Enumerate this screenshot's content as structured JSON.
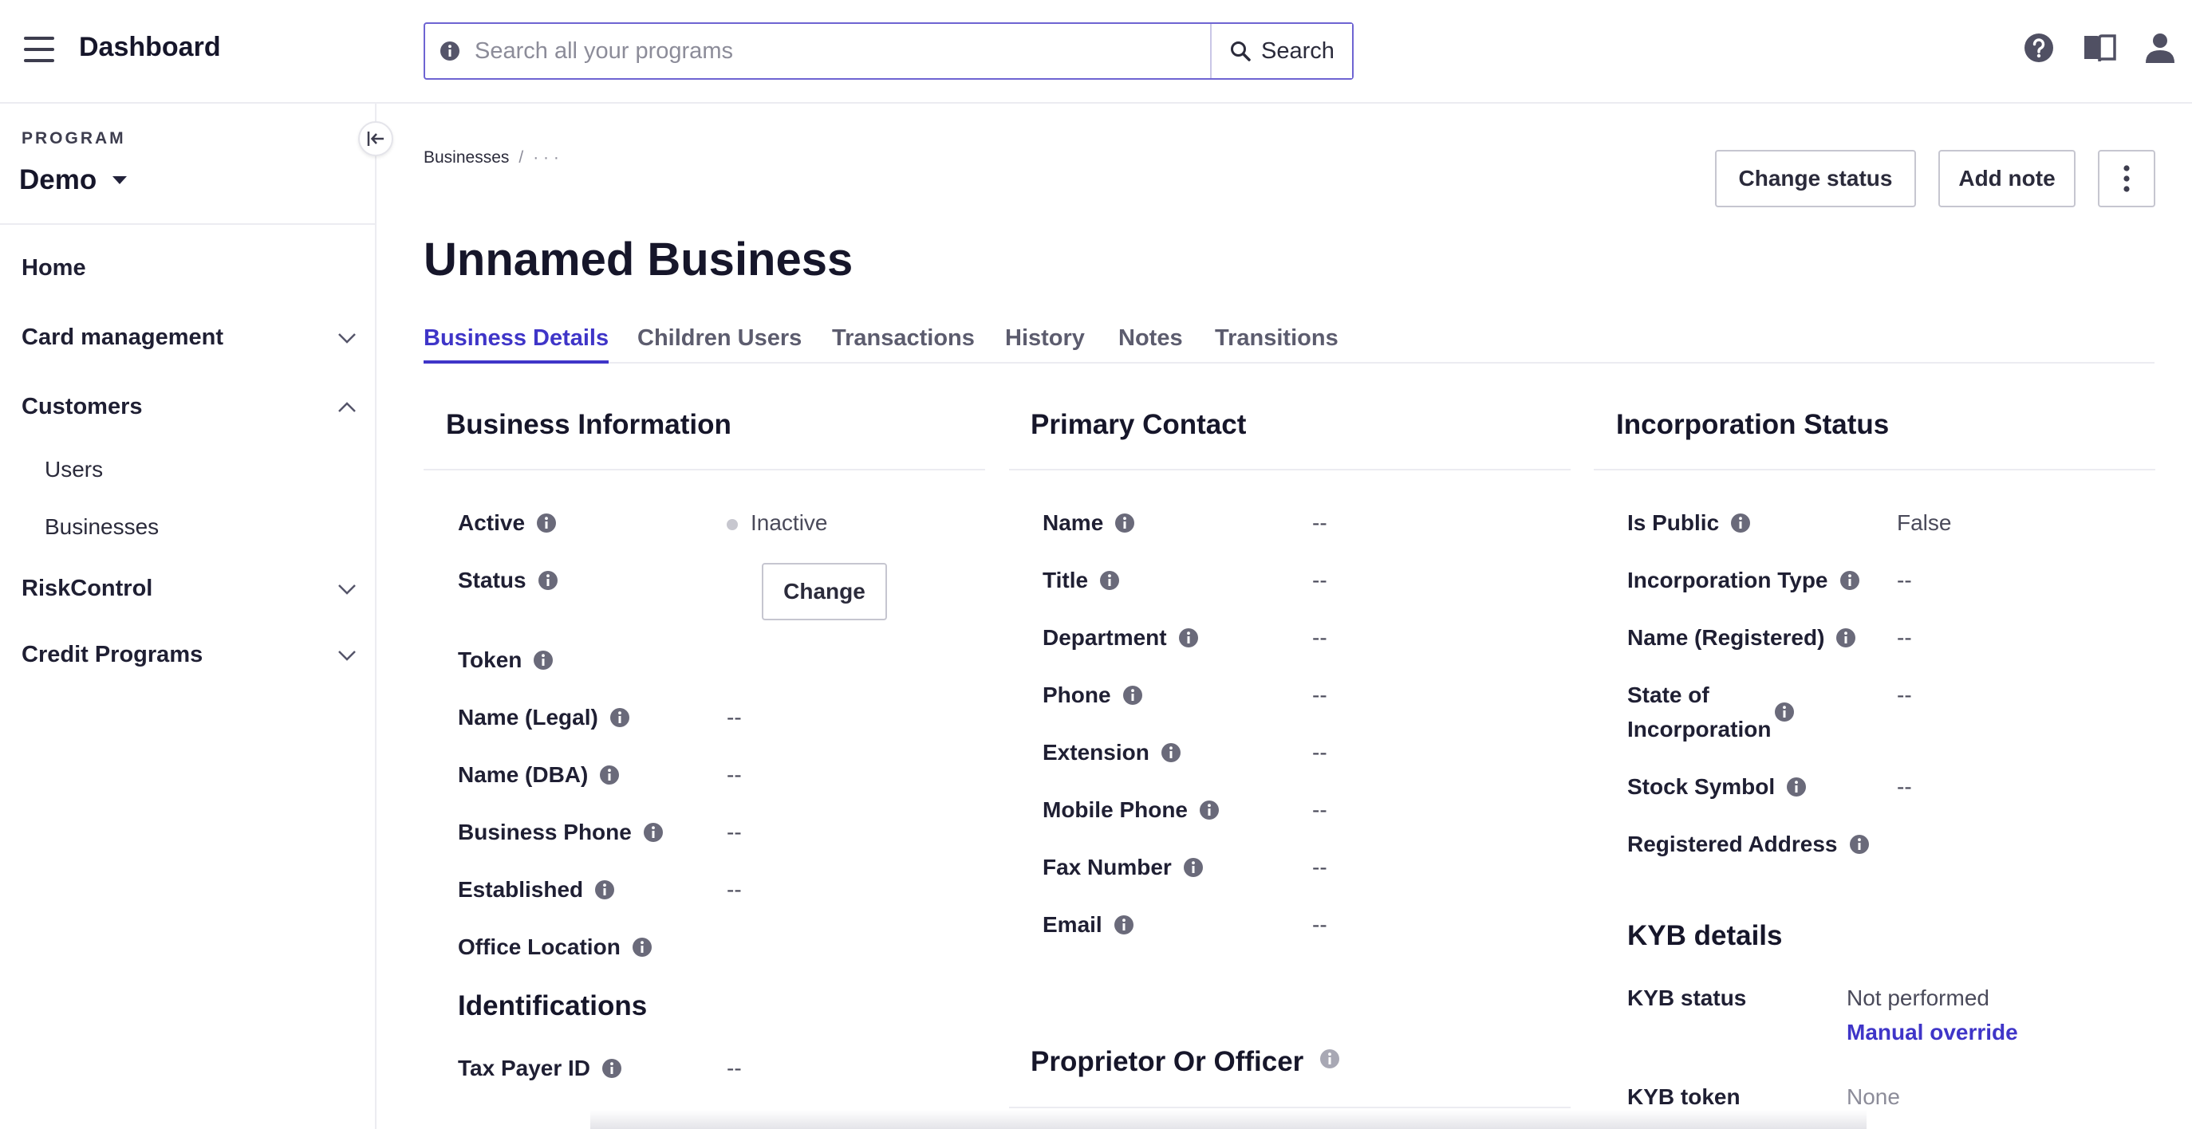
{
  "header": {
    "title": "Dashboard",
    "search_placeholder": "Search all your programs",
    "search_button": "Search",
    "icons": [
      "menu-icon",
      "help-icon",
      "docs-book-icon",
      "user-icon"
    ]
  },
  "sidebar": {
    "program_label": "PROGRAM",
    "program_value": "Demo",
    "items": [
      {
        "label": "Home"
      },
      {
        "label": "Card management",
        "expanded": false
      },
      {
        "label": "Customers",
        "expanded": true,
        "children": [
          "Users",
          "Businesses"
        ]
      },
      {
        "label": "RiskControl",
        "expanded": false
      },
      {
        "label": "Credit Programs",
        "expanded": false
      }
    ]
  },
  "breadcrumb": {
    "root": "Businesses",
    "separator": "/",
    "current": "· · ·"
  },
  "actions": {
    "change_status": "Change status",
    "add_note": "Add note"
  },
  "page_title": "Unnamed Business",
  "tabs": [
    "Business Details",
    "Children Users",
    "Transactions",
    "History",
    "Notes",
    "Transitions"
  ],
  "active_tab": "Business Details",
  "business_information": {
    "title": "Business Information",
    "active_label": "Active",
    "active_value": "Inactive",
    "status_label": "Status",
    "change_button": "Change",
    "token_label": "Token",
    "fields": [
      {
        "label": "Name (Legal)",
        "value": "--"
      },
      {
        "label": "Name (DBA)",
        "value": "--"
      },
      {
        "label": "Business Phone",
        "value": "--"
      },
      {
        "label": "Established",
        "value": "--"
      },
      {
        "label": "Office Location",
        "value": ""
      }
    ],
    "identifications_title": "Identifications",
    "tax_payer_label": "Tax Payer ID",
    "tax_payer_value": "--"
  },
  "primary_contact": {
    "title": "Primary Contact",
    "fields": [
      {
        "label": "Name",
        "value": "--"
      },
      {
        "label": "Title",
        "value": "--"
      },
      {
        "label": "Department",
        "value": "--"
      },
      {
        "label": "Phone",
        "value": "--"
      },
      {
        "label": "Extension",
        "value": "--"
      },
      {
        "label": "Mobile Phone",
        "value": "--"
      },
      {
        "label": "Fax Number",
        "value": "--"
      },
      {
        "label": "Email",
        "value": "--"
      }
    ],
    "proprietor_title": "Proprietor Or Officer"
  },
  "incorporation_status": {
    "title": "Incorporation Status",
    "fields": [
      {
        "label": "Is Public",
        "value": "False"
      },
      {
        "label": "Incorporation Type",
        "value": "--"
      },
      {
        "label": "Name (Registered)",
        "value": "--"
      },
      {
        "label_line1": "State of",
        "label_line2": "Incorporation",
        "value": "--"
      },
      {
        "label": "Stock Symbol",
        "value": "--"
      },
      {
        "label": "Registered Address",
        "value": ""
      }
    ],
    "kyb_title": "KYB details",
    "kyb_status_label": "KYB status",
    "kyb_status_value": "Not performed",
    "manual_override": "Manual override",
    "kyb_token_label": "KYB token",
    "kyb_token_value": "None"
  },
  "colors": {
    "accent": "#3f35c8",
    "border": "#ececf1",
    "info_icon": "#6a6a7a"
  }
}
